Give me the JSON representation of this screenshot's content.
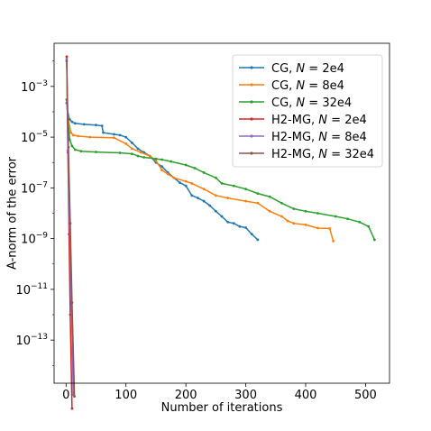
{
  "chart_data": {
    "type": "line",
    "title": "",
    "xlabel": "Number of iterations",
    "ylabel": "A-norm of the error",
    "xlim": [
      -20,
      540
    ],
    "ylim_log10": [
      -14.7,
      -1.3
    ],
    "y_scale": "log",
    "x_ticks": [
      0,
      100,
      200,
      300,
      400,
      500
    ],
    "x_tick_labels": [
      "0",
      "100",
      "200",
      "300",
      "400",
      "500"
    ],
    "y_ticks_log10": [
      -3,
      -5,
      -7,
      -9,
      -11,
      -13
    ],
    "y_tick_labels": [
      {
        "base": "10",
        "exp": "−3"
      },
      {
        "base": "10",
        "exp": "−5"
      },
      {
        "base": "10",
        "exp": "−7"
      },
      {
        "base": "10",
        "exp": "−9"
      },
      {
        "base": "10",
        "exp": "−11"
      },
      {
        "base": "10",
        "exp": "−13"
      }
    ],
    "grid": false,
    "legend_position": "top-right",
    "series": [
      {
        "name": "CG, N = 2e4",
        "name_prefix": "CG, ",
        "name_var": "N",
        "name_suffix": " = 2e4",
        "color": "#1f77b4",
        "points": [
          [
            1,
            0.00022
          ],
          [
            3,
            8e-05
          ],
          [
            6,
            5e-05
          ],
          [
            10,
            4e-05
          ],
          [
            15,
            3.5e-05
          ],
          [
            30,
            3.2e-05
          ],
          [
            50,
            3e-05
          ],
          [
            60,
            2.8e-05
          ],
          [
            62,
            1.5e-05
          ],
          [
            80,
            1.3e-05
          ],
          [
            90,
            1.2e-05
          ],
          [
            100,
            1e-05
          ],
          [
            110,
            6e-06
          ],
          [
            120,
            3.5e-06
          ],
          [
            130,
            2.5e-06
          ],
          [
            140,
            1.8e-06
          ],
          [
            150,
            1e-06
          ],
          [
            160,
            7e-07
          ],
          [
            170,
            4e-07
          ],
          [
            180,
            2.5e-07
          ],
          [
            190,
            1.6e-07
          ],
          [
            200,
            1.2e-07
          ],
          [
            210,
            5e-08
          ],
          [
            220,
            4e-08
          ],
          [
            230,
            3e-08
          ],
          [
            240,
            2e-08
          ],
          [
            250,
            1.2e-08
          ],
          [
            260,
            7.5e-09
          ],
          [
            270,
            4.5e-09
          ],
          [
            280,
            4e-09
          ],
          [
            290,
            3e-09
          ],
          [
            300,
            2.7e-09
          ],
          [
            310,
            1.5e-09
          ],
          [
            320,
            9e-10
          ]
        ]
      },
      {
        "name": "CG, N = 8e4",
        "name_prefix": "CG, ",
        "name_var": "N",
        "name_suffix": " = 8e4",
        "color": "#ff7f0e",
        "points": [
          [
            1,
            0.0003
          ],
          [
            3,
            6e-05
          ],
          [
            8,
            1.5e-05
          ],
          [
            12,
            1.2e-05
          ],
          [
            20,
            1.1e-05
          ],
          [
            40,
            1e-05
          ],
          [
            80,
            9.5e-06
          ],
          [
            100,
            5.5e-06
          ],
          [
            110,
            3.5e-06
          ],
          [
            125,
            2.5e-06
          ],
          [
            140,
            1.8e-06
          ],
          [
            150,
            1.2e-06
          ],
          [
            160,
            5e-07
          ],
          [
            170,
            3.5e-07
          ],
          [
            180,
            2.5e-07
          ],
          [
            200,
            1.8e-07
          ],
          [
            210,
            1.5e-07
          ],
          [
            230,
            9e-08
          ],
          [
            250,
            5e-08
          ],
          [
            270,
            4e-08
          ],
          [
            300,
            3e-08
          ],
          [
            320,
            2.5e-08
          ],
          [
            340,
            1.2e-08
          ],
          [
            360,
            7.5e-09
          ],
          [
            370,
            5e-09
          ],
          [
            380,
            4e-09
          ],
          [
            400,
            3.5e-09
          ],
          [
            420,
            2.6e-09
          ],
          [
            440,
            2.5e-09
          ],
          [
            446,
            8e-10
          ]
        ]
      },
      {
        "name": "CG, N = 32e4",
        "name_prefix": "CG, ",
        "name_var": "N",
        "name_suffix": " = 32e4",
        "color": "#2ca02c",
        "points": [
          [
            1,
            0.0003
          ],
          [
            3,
            5e-05
          ],
          [
            6,
            8e-06
          ],
          [
            10,
            4.5e-06
          ],
          [
            15,
            3.2e-06
          ],
          [
            25,
            2.8e-06
          ],
          [
            50,
            2.6e-06
          ],
          [
            90,
            2.4e-06
          ],
          [
            110,
            2.2e-06
          ],
          [
            120,
            1.8e-06
          ],
          [
            130,
            1.6e-06
          ],
          [
            150,
            1.4e-06
          ],
          [
            160,
            1.3e-06
          ],
          [
            175,
            1.1e-06
          ],
          [
            200,
            8e-07
          ],
          [
            215,
            6e-07
          ],
          [
            230,
            4e-07
          ],
          [
            250,
            2.5e-07
          ],
          [
            260,
            1.5e-07
          ],
          [
            280,
            1.2e-07
          ],
          [
            300,
            9e-08
          ],
          [
            320,
            6e-08
          ],
          [
            340,
            4.5e-08
          ],
          [
            360,
            2.5e-08
          ],
          [
            380,
            1.5e-08
          ],
          [
            400,
            1.2e-08
          ],
          [
            420,
            1e-08
          ],
          [
            450,
            7.5e-09
          ],
          [
            470,
            6e-09
          ],
          [
            490,
            4.5e-09
          ],
          [
            505,
            3e-09
          ],
          [
            515,
            9e-10
          ]
        ]
      },
      {
        "name": "H2-MG, N = 2e4",
        "name_prefix": "H2-MG, ",
        "name_var": "N",
        "name_suffix": " = 2e4",
        "color": "#d62728",
        "points": [
          [
            1,
            0.015
          ],
          [
            3,
            2.5e-06
          ],
          [
            5,
            1.5e-09
          ],
          [
            7,
            1e-12
          ],
          [
            10,
            2e-16
          ]
        ]
      },
      {
        "name": "H2-MG, N = 8e4",
        "name_prefix": "H2-MG, ",
        "name_var": "N",
        "name_suffix": " = 8e4",
        "color": "#9467bd",
        "points": [
          [
            1,
            0.012
          ],
          [
            3,
            3e-06
          ],
          [
            6,
            3e-09
          ],
          [
            9,
            2e-12
          ],
          [
            12,
            7e-16
          ]
        ]
      },
      {
        "name": "H2-MG, N = 32e4",
        "name_prefix": "H2-MG, ",
        "name_var": "N",
        "name_suffix": " = 32e4",
        "color": "#8c564b",
        "points": [
          [
            1,
            0.01
          ],
          [
            4,
            4e-06
          ],
          [
            7,
            4e-09
          ],
          [
            10,
            3e-12
          ],
          [
            14,
            6e-16
          ]
        ]
      }
    ]
  }
}
